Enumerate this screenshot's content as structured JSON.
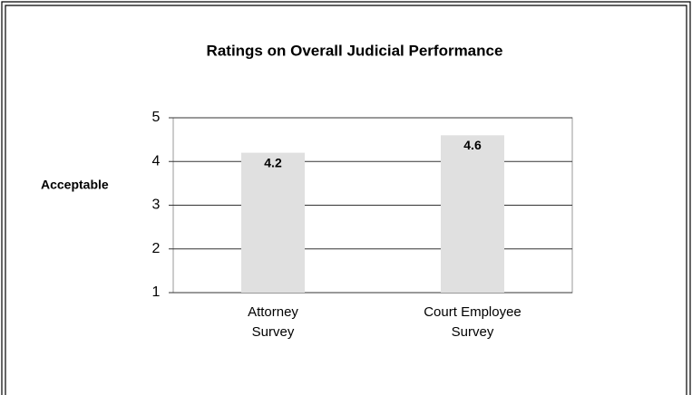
{
  "chart_data": {
    "type": "bar",
    "title": "Ratings on Overall Judicial Performance",
    "y_label": "Acceptable",
    "categories": [
      [
        "Attorney",
        "Survey"
      ],
      [
        "Court Employee",
        "Survey"
      ]
    ],
    "values": [
      4.2,
      4.6
    ],
    "color": "#e0e0e0",
    "ylim": [
      1,
      5
    ],
    "yticks": [
      1,
      2,
      3,
      4,
      5
    ],
    "grid": true
  }
}
